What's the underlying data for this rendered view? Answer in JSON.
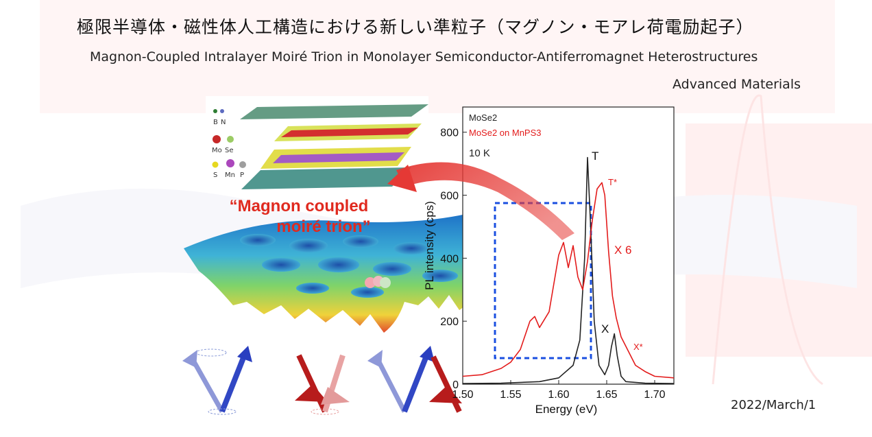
{
  "header": {
    "title_ja": "極限半導体・磁性体人工構造における新しい準粒子（マグノン・モアレ荷電励起子）",
    "title_en": "Magnon-Coupled Intralayer Moiré Trion in Monolayer Semiconductor-Antiferromagnet Heterostructures",
    "journal": "Advanced Materials"
  },
  "footer": {
    "date": "2022/March/1"
  },
  "figure": {
    "atom_legend": [
      "B",
      "N",
      "Mo",
      "Se",
      "S",
      "Mn",
      "P"
    ],
    "atom_colors": {
      "B": "#2e7d32",
      "N": "#5c6bc0",
      "Mo": "#c62828",
      "Se": "#9ccc65",
      "S": "#e6d820",
      "Mn": "#ab47bc",
      "P": "#9e9e9e"
    },
    "overlay_line1": "“Magnon coupled",
    "overlay_line2": "moiré trion”",
    "legend_line1": "MoSe2",
    "legend_line2": "MoSe2 on MnPS3",
    "legend_line3": "10 K",
    "peak_labels": {
      "T": "T",
      "T_star": "T*",
      "X": "X",
      "X_star": "X*",
      "scale": "X 6"
    },
    "spin_arrows": [
      "blue",
      "red",
      "blue",
      "red"
    ]
  },
  "chart_data": {
    "type": "line",
    "xlabel": "Energy (eV)",
    "ylabel": "PL intensity (cps)",
    "xlim": [
      1.5,
      1.72
    ],
    "ylim": [
      0,
      880
    ],
    "xticks": [
      "1.50",
      "1.55",
      "1.60",
      "1.65",
      "1.70"
    ],
    "yticks": [
      "0",
      "200",
      "400",
      "600",
      "800"
    ],
    "series": [
      {
        "name": "MoSe2",
        "color": "#222222",
        "x": [
          1.5,
          1.54,
          1.58,
          1.6,
          1.615,
          1.622,
          1.627,
          1.63,
          1.633,
          1.637,
          1.642,
          1.648,
          1.652,
          1.655,
          1.658,
          1.661,
          1.665,
          1.67,
          1.69,
          1.72
        ],
        "y": [
          2,
          3,
          8,
          20,
          60,
          140,
          400,
          720,
          520,
          200,
          60,
          30,
          60,
          120,
          160,
          90,
          25,
          8,
          3,
          2
        ]
      },
      {
        "name": "MoSe2 on MnPS3",
        "color": "#e31b1b",
        "x": [
          1.5,
          1.52,
          1.54,
          1.55,
          1.56,
          1.57,
          1.575,
          1.58,
          1.59,
          1.6,
          1.605,
          1.61,
          1.615,
          1.62,
          1.625,
          1.63,
          1.635,
          1.64,
          1.645,
          1.648,
          1.652,
          1.656,
          1.66,
          1.665,
          1.67,
          1.68,
          1.69,
          1.7,
          1.72
        ],
        "y": [
          25,
          30,
          50,
          70,
          110,
          200,
          215,
          180,
          230,
          410,
          450,
          370,
          440,
          340,
          300,
          390,
          520,
          620,
          640,
          600,
          420,
          280,
          210,
          150,
          120,
          60,
          40,
          25,
          20
        ]
      }
    ],
    "annotations": [
      "T",
      "T*",
      "X",
      "X*",
      "X 6"
    ],
    "grid": false,
    "legend": "top-left"
  }
}
